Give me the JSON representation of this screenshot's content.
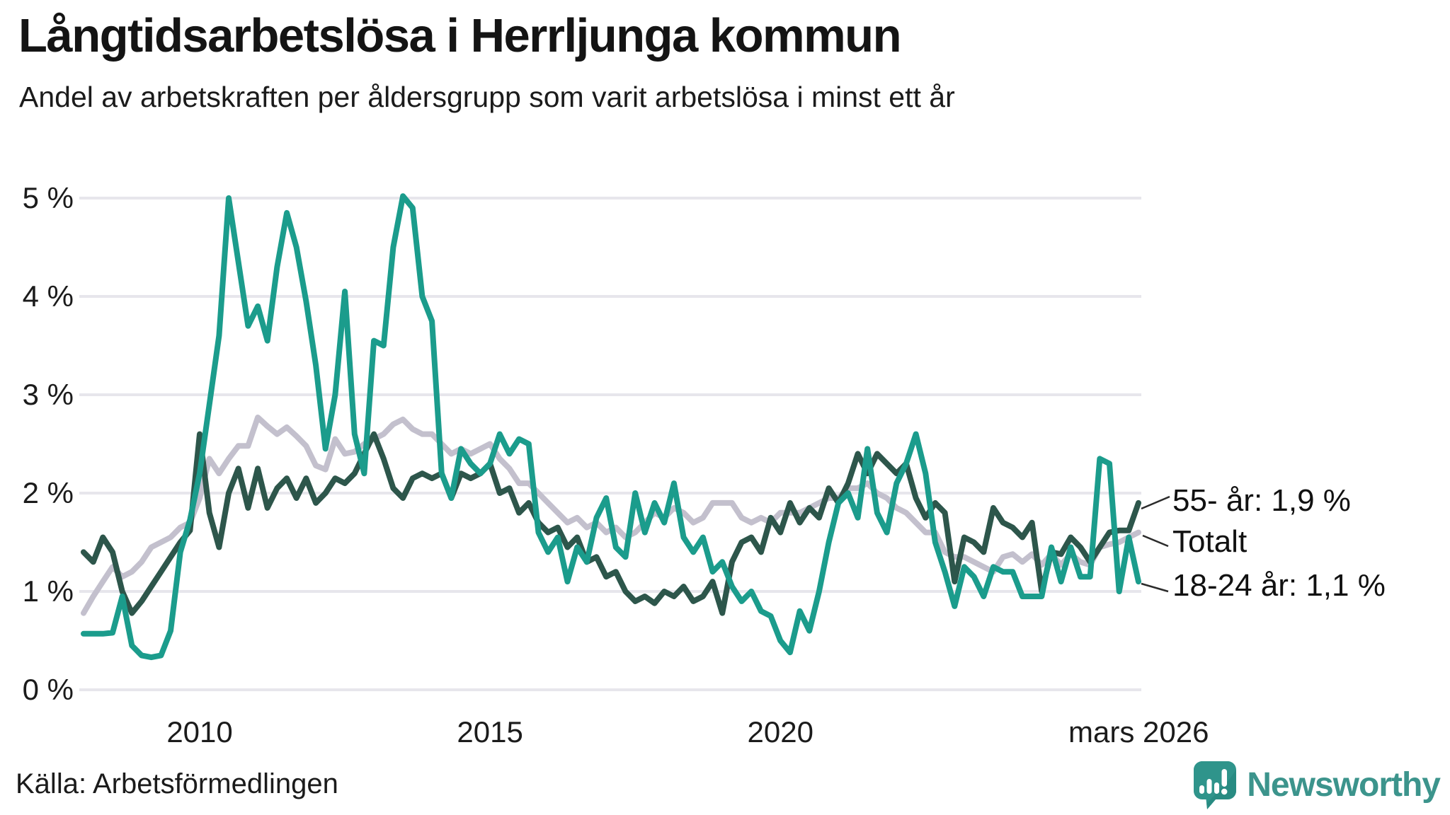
{
  "header": {
    "title": "Långtidsarbetslösa i Herrljunga kommun",
    "subtitle": "Andel av arbetskraften per åldersgrupp som varit arbetslösa i minst ett år"
  },
  "chart_data": {
    "type": "line",
    "title": "Långtidsarbetslösa i Herrljunga kommun",
    "subtitle": "Andel av arbetskraften per åldersgrupp som varit arbetslösa i minst ett år",
    "unit": "%",
    "grid": "horizontal-only",
    "legend_position": "end-of-line-annotations",
    "x_axis": {
      "start_year": 2008,
      "points_per_year": 6,
      "end_label": "mars 2026",
      "ticks": [
        {
          "label": "2010",
          "year": 2010
        },
        {
          "label": "2015",
          "year": 2015
        },
        {
          "label": "2020",
          "year": 2020
        },
        {
          "label": "mars 2026",
          "year": 2026.17
        }
      ]
    },
    "y_axis": {
      "min": 0,
      "max": 5,
      "ticks": [
        {
          "label": "5 %",
          "value": 5
        },
        {
          "label": "4 %",
          "value": 4
        },
        {
          "label": "3 %",
          "value": 3
        },
        {
          "label": "2 %",
          "value": 2
        },
        {
          "label": "1 %",
          "value": 1
        },
        {
          "label": "0 %",
          "value": 0
        }
      ]
    },
    "series": [
      {
        "name": "Totalt",
        "color": "#c3c0cd",
        "values": [
          0.78,
          0.95,
          1.1,
          1.25,
          1.15,
          1.2,
          1.3,
          1.45,
          1.5,
          1.55,
          1.65,
          1.7,
          1.95,
          2.35,
          2.2,
          2.35,
          2.48,
          2.48,
          2.77,
          2.68,
          2.6,
          2.67,
          2.58,
          2.48,
          2.28,
          2.24,
          2.55,
          2.4,
          2.42,
          2.5,
          2.55,
          2.6,
          2.7,
          2.75,
          2.65,
          2.6,
          2.6,
          2.5,
          2.4,
          2.45,
          2.4,
          2.45,
          2.5,
          2.35,
          2.25,
          2.1,
          2.1,
          2.0,
          1.9,
          1.8,
          1.7,
          1.75,
          1.65,
          1.7,
          1.6,
          1.65,
          1.55,
          1.6,
          1.7,
          1.8,
          1.75,
          1.85,
          1.8,
          1.7,
          1.75,
          1.9,
          1.9,
          1.9,
          1.75,
          1.7,
          1.75,
          1.7,
          1.8,
          1.8,
          1.8,
          1.85,
          1.9,
          1.95,
          1.95,
          2.05,
          2.05,
          2.1,
          2.0,
          1.95,
          1.85,
          1.8,
          1.7,
          1.6,
          1.6,
          1.4,
          1.35,
          1.35,
          1.3,
          1.25,
          1.2,
          1.35,
          1.38,
          1.3,
          1.38,
          1.27,
          1.38,
          1.27,
          1.38,
          1.3,
          1.27,
          1.45,
          1.48,
          1.5,
          1.55,
          1.6
        ]
      },
      {
        "name": "55- år",
        "color": "#2d564b",
        "values": [
          1.4,
          1.3,
          1.55,
          1.4,
          1.0,
          0.78,
          0.9,
          1.05,
          1.2,
          1.35,
          1.5,
          1.62,
          2.6,
          1.8,
          1.45,
          2.0,
          2.25,
          1.85,
          2.25,
          1.85,
          2.05,
          2.15,
          1.95,
          2.15,
          1.9,
          2.0,
          2.15,
          2.1,
          2.2,
          2.4,
          2.6,
          2.35,
          2.05,
          1.95,
          2.15,
          2.2,
          2.15,
          2.2,
          1.95,
          2.2,
          2.15,
          2.2,
          2.3,
          2.0,
          2.05,
          1.8,
          1.9,
          1.7,
          1.6,
          1.65,
          1.45,
          1.55,
          1.3,
          1.35,
          1.15,
          1.2,
          1.0,
          0.9,
          0.95,
          0.88,
          1.0,
          0.95,
          1.05,
          0.9,
          0.95,
          1.1,
          0.78,
          1.3,
          1.5,
          1.55,
          1.4,
          1.75,
          1.6,
          1.9,
          1.7,
          1.85,
          1.75,
          2.05,
          1.9,
          2.1,
          2.4,
          2.2,
          2.4,
          2.3,
          2.2,
          2.3,
          1.95,
          1.75,
          1.9,
          1.8,
          1.1,
          1.55,
          1.5,
          1.4,
          1.85,
          1.7,
          1.65,
          1.55,
          1.7,
          1.0,
          1.4,
          1.38,
          1.55,
          1.45,
          1.3,
          1.45,
          1.6,
          1.62,
          1.62,
          1.9
        ]
      },
      {
        "name": "18-24 år",
        "color": "#1b9c8c",
        "values": [
          0.57,
          0.57,
          0.57,
          0.58,
          0.95,
          0.45,
          0.35,
          0.33,
          0.35,
          0.6,
          1.4,
          1.73,
          2.2,
          2.9,
          3.6,
          5.0,
          4.35,
          3.7,
          3.9,
          3.55,
          4.3,
          4.85,
          4.5,
          3.95,
          3.3,
          2.45,
          3.0,
          4.05,
          2.6,
          2.2,
          3.55,
          3.5,
          4.5,
          5.02,
          4.9,
          4.0,
          3.75,
          2.2,
          1.95,
          2.45,
          2.3,
          2.2,
          2.3,
          2.6,
          2.4,
          2.55,
          2.5,
          1.6,
          1.4,
          1.55,
          1.1,
          1.45,
          1.3,
          1.75,
          1.95,
          1.45,
          1.35,
          2.0,
          1.6,
          1.9,
          1.7,
          2.1,
          1.55,
          1.4,
          1.55,
          1.2,
          1.3,
          1.05,
          0.9,
          1.0,
          0.8,
          0.75,
          0.5,
          0.38,
          0.8,
          0.6,
          1.0,
          1.5,
          1.9,
          2.0,
          1.75,
          2.45,
          1.8,
          1.6,
          2.1,
          2.3,
          2.6,
          2.2,
          1.5,
          1.2,
          0.85,
          1.25,
          1.15,
          0.95,
          1.25,
          1.2,
          1.2,
          0.95,
          0.95,
          0.95,
          1.45,
          1.1,
          1.45,
          1.15,
          1.15,
          2.35,
          2.3,
          1.0,
          1.55,
          1.1
        ]
      }
    ],
    "annotations": [
      {
        "label": "55- år: 1,9 %",
        "series": "55- år",
        "end_value_pct": 1.9
      },
      {
        "label": "Totalt",
        "series": "Totalt"
      },
      {
        "label": "18-24 år: 1,1 %",
        "series": "18-24 år",
        "end_value_pct": 1.1
      }
    ]
  },
  "source": {
    "label": "Källa: Arbetsförmedlingen"
  },
  "branding": {
    "logo_text": "Newsworthy",
    "logo_icon": "newsworthy-chart-speech-bubble-icon",
    "logo_text_color": "#3c948c",
    "logo_icon_color": "#2f948b"
  }
}
